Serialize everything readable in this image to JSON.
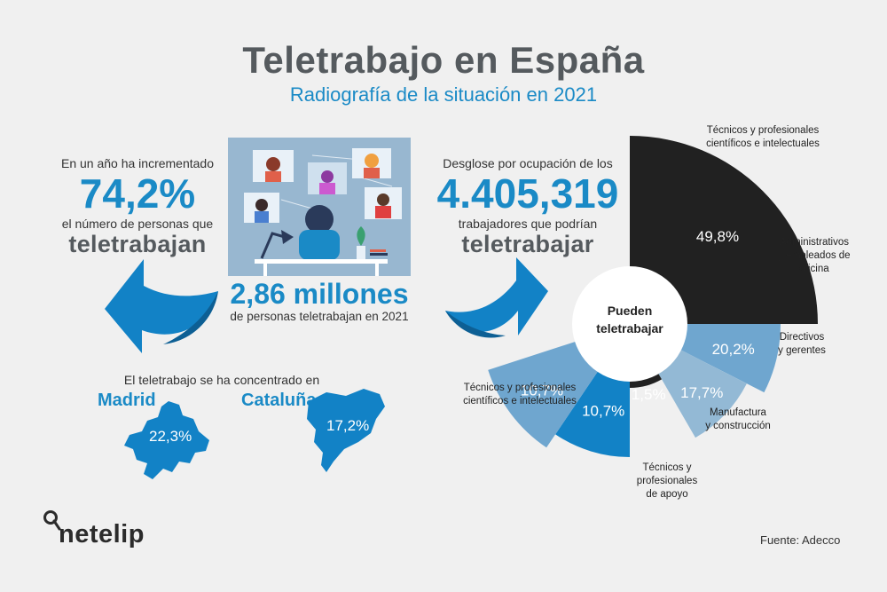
{
  "header": {
    "title": "Teletrabajo en España",
    "subtitle": "Radiografía de la situación en 2021"
  },
  "left_stat": {
    "intro": "En un año ha incrementado",
    "value": "74,2%",
    "desc": "el número de personas que",
    "highlight": "teletrabajan"
  },
  "center_stat": {
    "value": "2,86 millones",
    "desc": "de personas teletrabajan en 2021"
  },
  "right_stat": {
    "intro": "Desglose por ocupación de los",
    "value": "4.405,319",
    "desc": "trabajadores que podrían",
    "highlight": "teletrabajar"
  },
  "regions": {
    "intro": "El teletrabajo se ha concentrado en",
    "items": [
      {
        "name": "Madrid",
        "value": "22,3%"
      },
      {
        "name": "Cataluña",
        "value": "17,2%"
      }
    ]
  },
  "colors": {
    "black": "#212121",
    "mid_blue": "#6fa6cf",
    "light_blue": "#93b9d5",
    "bright_blue": "#1282c6",
    "accent": "#1a8ac6"
  },
  "chart_data": {
    "type": "pie",
    "center_label": [
      "Pueden",
      "teletrabajar"
    ],
    "slices": [
      {
        "label_lines": [
          "Técnicos y profesionales",
          "científicos e intelectuales"
        ],
        "value": 49.8,
        "display": "49,8%",
        "color": "#212121"
      },
      {
        "label_lines": [
          "Administrativos",
          "y empleados de",
          "oficina"
        ],
        "value": 20.2,
        "display": "20,2%",
        "color": "#6fa6cf"
      },
      {
        "label_lines": [
          "Directivos",
          "y gerentes"
        ],
        "value": 17.7,
        "display": "17,7%",
        "color": "#93b9d5"
      },
      {
        "label_lines": [
          "Manufactura",
          "y construcción"
        ],
        "value": 1.5,
        "display": "1,5%",
        "color": "#212121"
      },
      {
        "label_lines": [
          "Técnicos y",
          "profesionales",
          "de apoyo"
        ],
        "value": 10.7,
        "display": "10,7%",
        "color": "#1282c6"
      },
      {
        "label_lines": [
          "Técnicos y profesionales",
          "científicos e intelectuales"
        ],
        "value": 10.7,
        "display": "10,7%",
        "color": "#6fa6cf"
      }
    ]
  },
  "footer": {
    "logo": "netelip",
    "source": "Fuente: Adecco"
  }
}
